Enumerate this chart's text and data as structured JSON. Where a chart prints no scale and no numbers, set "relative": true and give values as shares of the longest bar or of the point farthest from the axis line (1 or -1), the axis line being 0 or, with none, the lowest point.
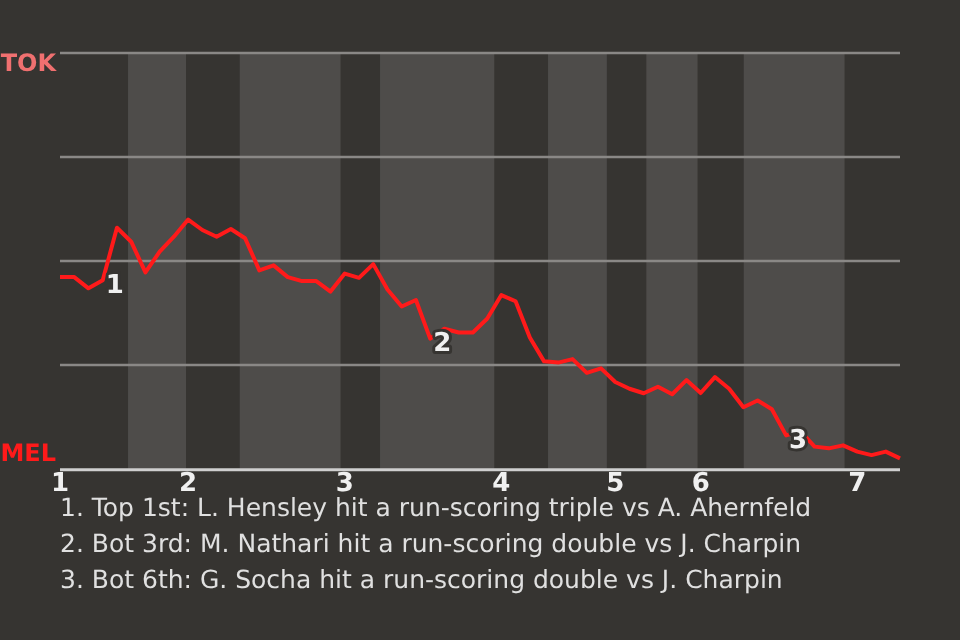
{
  "chart_data": {
    "type": "line",
    "relative": true,
    "categories": [
      "1",
      null,
      null,
      null,
      null,
      null,
      null,
      null,
      null,
      "2",
      null,
      null,
      null,
      null,
      null,
      null,
      null,
      null,
      null,
      null,
      "3",
      null,
      null,
      null,
      null,
      null,
      null,
      null,
      null,
      null,
      null,
      "4",
      null,
      null,
      null,
      null,
      null,
      null,
      null,
      "5",
      null,
      null,
      null,
      null,
      null,
      "6",
      null,
      null,
      null,
      null,
      null,
      null,
      null,
      null,
      null,
      null,
      "7",
      null,
      null,
      null
    ],
    "series": [
      {
        "color": "#ff1a1a",
        "values": [
          0.769,
          0.769,
          0.724,
          0.756,
          0.967,
          0.911,
          0.788,
          0.871,
          0.931,
          1,
          0.958,
          0.931,
          0.962,
          0.925,
          0.796,
          0.816,
          0.769,
          0.753,
          0.753,
          0.711,
          0.783,
          0.766,
          0.821,
          0.719,
          0.651,
          0.677,
          0.522,
          0.562,
          0.547,
          0.547,
          0.602,
          0.697,
          0.672,
          0.527,
          0.431,
          0.426,
          0.44,
          0.385,
          0.403,
          0.348,
          0.321,
          0.303,
          0.329,
          0.299,
          0.356,
          0.304,
          0.368,
          0.321,
          0.247,
          0.274,
          0.239,
          0.134,
          0.151,
          0.089,
          0.082,
          0.094,
          0.069,
          0.055,
          0.069,
          0.042
        ]
      }
    ],
    "marker": "none",
    "ref_lines": [
      {
        "axis": "y",
        "value": 0.418
      },
      {
        "axis": "y",
        "value": 0.836
      },
      {
        "axis": "y",
        "value": 1.254
      },
      {
        "axis": "y",
        "value": 1.672,
        "label": "TOK"
      }
    ],
    "annotations": [
      "MEL",
      {
        "text": "1",
        "y": 0.756
      },
      {
        "text": "2",
        "y": 0.522
      },
      {
        "text": "3",
        "y": 0.134
      },
      "1. Top 1st: L. Hensley hit a run-scoring triple vs A. Ahernfeld",
      "2. Bot 3rd: M. Nathari hit a run-scoring double vs J. Charpin",
      "3. Bot 6th: G. Socha hit a run-scoring double vs J. Charpin"
    ]
  }
}
